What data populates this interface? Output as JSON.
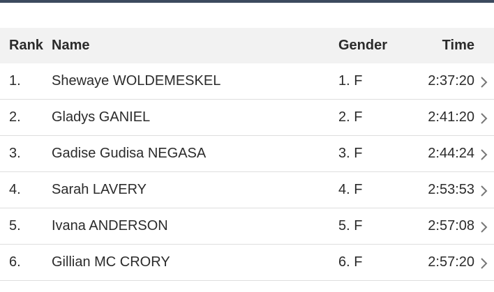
{
  "table": {
    "headers": [
      "Rank",
      "Name",
      "Gender",
      "Time"
    ],
    "rows": [
      [
        "1.",
        "Shewaye WOLDEMESKEL",
        "1. F",
        "2:37:20"
      ],
      [
        "2.",
        "Gladys GANIEL",
        "2. F",
        "2:41:20"
      ],
      [
        "3.",
        "Gadise Gudisa NEGASA",
        "3. F",
        "2:44:24"
      ],
      [
        "4.",
        "Sarah LAVERY",
        "4. F",
        "2:53:53"
      ],
      [
        "5.",
        "Ivana ANDERSON",
        "5. F",
        "2:57:08"
      ],
      [
        "6.",
        "Gillian MC CRORY",
        "6. F",
        "2:57:20"
      ]
    ]
  }
}
